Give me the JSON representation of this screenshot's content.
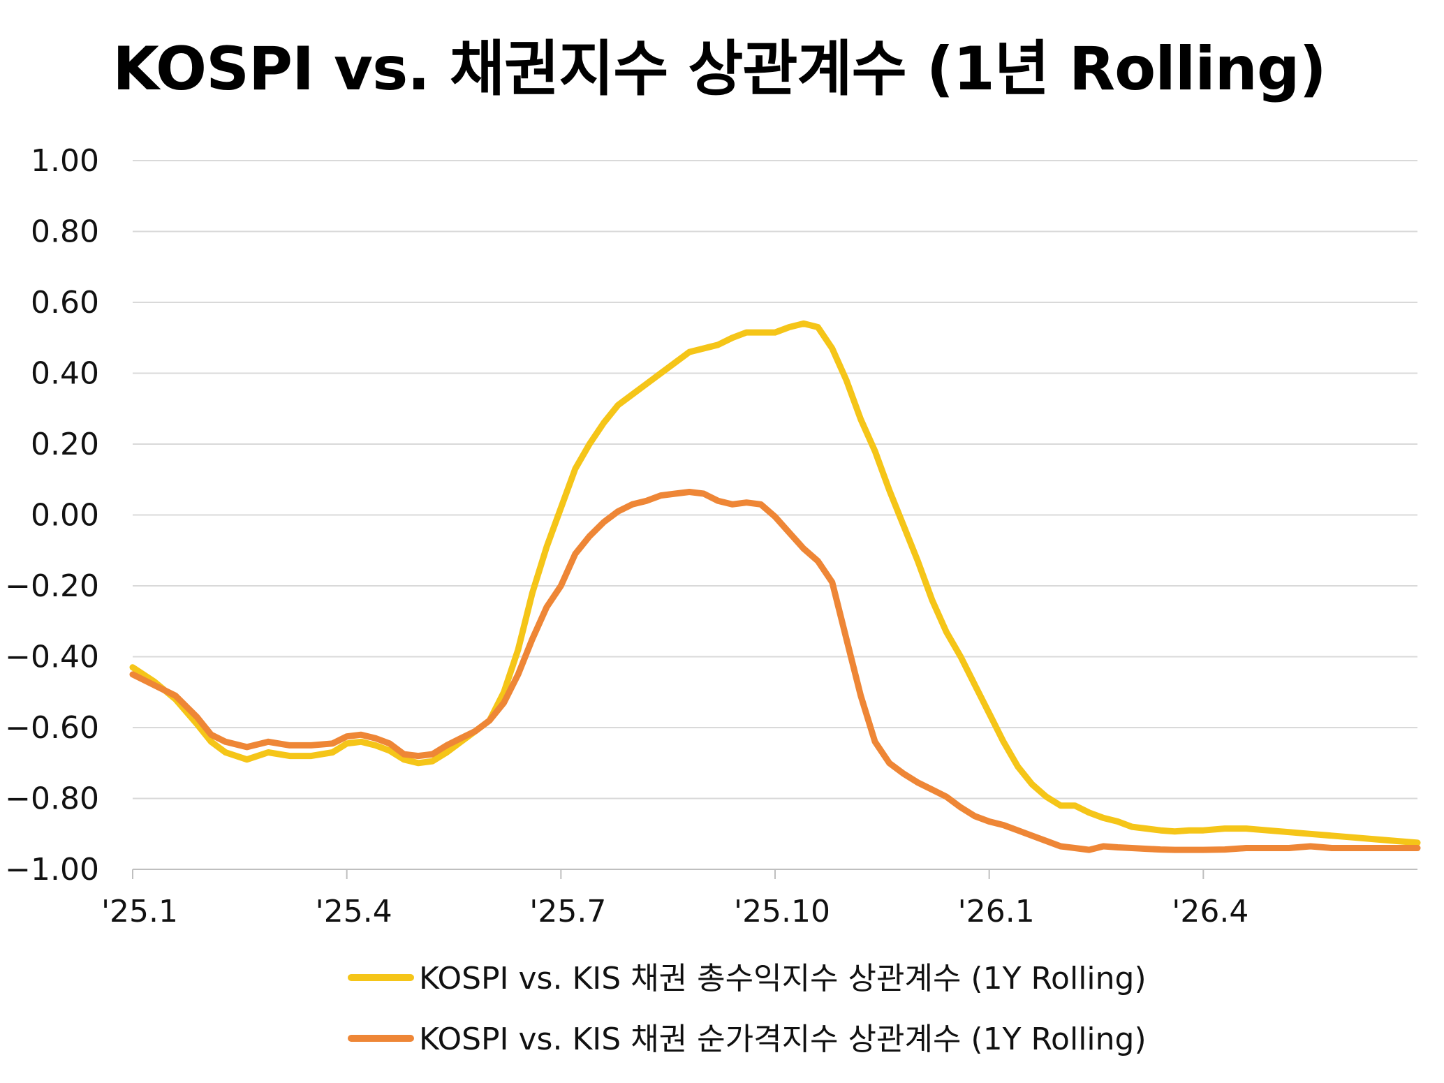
{
  "chart_data": {
    "type": "line",
    "title": "KOSPI vs. 채권지수 상관계수 (1년 Rolling)",
    "xlabel": "",
    "ylabel": "",
    "ylim": [
      -1.0,
      1.0
    ],
    "y_ticks": [
      "1.00",
      "0.80",
      "0.60",
      "0.40",
      "0.20",
      "0.00",
      "−0.20",
      "−0.40",
      "−0.60",
      "−0.80",
      "−1.00"
    ],
    "y_tick_values": [
      1.0,
      0.8,
      0.6,
      0.4,
      0.2,
      0.0,
      -0.2,
      -0.4,
      -0.6,
      -0.8,
      -1.0
    ],
    "x_ticks": [
      "'25.1",
      "'25.4",
      "'25.7",
      "'25.10",
      "'26.1",
      "'26.4"
    ],
    "x_tick_values": [
      0,
      3,
      6,
      9,
      12,
      15
    ],
    "xlim": [
      0,
      18
    ],
    "grid": true,
    "legend_position": "bottom",
    "series": [
      {
        "name": "KOSPI vs. KIS 채권 총수익지수 상관계수 (1Y Rolling)",
        "color": "#F5C518",
        "x": [
          0,
          0.3,
          0.6,
          0.9,
          1.1,
          1.3,
          1.6,
          1.9,
          2.2,
          2.5,
          2.8,
          3.0,
          3.2,
          3.4,
          3.6,
          3.8,
          4.0,
          4.2,
          4.4,
          4.6,
          4.8,
          5.0,
          5.2,
          5.4,
          5.6,
          5.8,
          6.0,
          6.2,
          6.4,
          6.6,
          6.8,
          7.0,
          7.2,
          7.4,
          7.6,
          7.8,
          8.0,
          8.2,
          8.4,
          8.6,
          8.8,
          9.0,
          9.2,
          9.4,
          9.6,
          9.8,
          10.0,
          10.2,
          10.4,
          10.6,
          10.8,
          11.0,
          11.2,
          11.4,
          11.6,
          11.8,
          12.0,
          12.2,
          12.4,
          12.6,
          12.8,
          13.0,
          13.2,
          13.4,
          13.6,
          13.8,
          14.0,
          14.2,
          14.4,
          14.6,
          14.8,
          15.0,
          15.3,
          15.6,
          15.9,
          16.2,
          16.5,
          16.8,
          17.1,
          17.4,
          17.7,
          18.0
        ],
        "y": [
          -0.43,
          -0.47,
          -0.52,
          -0.59,
          -0.64,
          -0.67,
          -0.69,
          -0.67,
          -0.68,
          -0.68,
          -0.67,
          -0.645,
          -0.64,
          -0.65,
          -0.665,
          -0.69,
          -0.7,
          -0.695,
          -0.67,
          -0.64,
          -0.61,
          -0.58,
          -0.5,
          -0.38,
          -0.22,
          -0.09,
          0.02,
          0.13,
          0.2,
          0.26,
          0.31,
          0.34,
          0.37,
          0.4,
          0.43,
          0.46,
          0.47,
          0.48,
          0.5,
          0.515,
          0.515,
          0.515,
          0.53,
          0.54,
          0.53,
          0.47,
          0.38,
          0.27,
          0.18,
          0.07,
          -0.03,
          -0.13,
          -0.24,
          -0.33,
          -0.4,
          -0.48,
          -0.56,
          -0.64,
          -0.71,
          -0.76,
          -0.795,
          -0.82,
          -0.82,
          -0.84,
          -0.855,
          -0.865,
          -0.88,
          -0.885,
          -0.89,
          -0.893,
          -0.89,
          -0.89,
          -0.885,
          -0.885,
          -0.89,
          -0.895,
          -0.9,
          -0.905,
          -0.91,
          -0.915,
          -0.92,
          -0.925
        ]
      },
      {
        "name": "KOSPI vs. KIS 채권 순가격지수 상관계수 (1Y Rolling)",
        "color": "#EE8636",
        "x": [
          0,
          0.3,
          0.6,
          0.9,
          1.1,
          1.3,
          1.6,
          1.9,
          2.2,
          2.5,
          2.8,
          3.0,
          3.2,
          3.4,
          3.6,
          3.8,
          4.0,
          4.2,
          4.4,
          4.6,
          4.8,
          5.0,
          5.2,
          5.4,
          5.6,
          5.8,
          6.0,
          6.2,
          6.4,
          6.6,
          6.8,
          7.0,
          7.2,
          7.4,
          7.6,
          7.8,
          8.0,
          8.2,
          8.4,
          8.6,
          8.8,
          9.0,
          9.2,
          9.4,
          9.6,
          9.8,
          10.0,
          10.2,
          10.4,
          10.6,
          10.8,
          11.0,
          11.2,
          11.4,
          11.6,
          11.8,
          12.0,
          12.2,
          12.4,
          12.6,
          12.8,
          13.0,
          13.2,
          13.4,
          13.6,
          13.8,
          14.0,
          14.2,
          14.4,
          14.6,
          14.8,
          15.0,
          15.3,
          15.6,
          15.9,
          16.2,
          16.5,
          16.8,
          17.1,
          17.4,
          17.7,
          18.0
        ],
        "y": [
          -0.45,
          -0.48,
          -0.51,
          -0.57,
          -0.62,
          -0.64,
          -0.655,
          -0.64,
          -0.65,
          -0.65,
          -0.645,
          -0.625,
          -0.62,
          -0.63,
          -0.645,
          -0.675,
          -0.68,
          -0.675,
          -0.65,
          -0.63,
          -0.61,
          -0.58,
          -0.53,
          -0.45,
          -0.35,
          -0.26,
          -0.2,
          -0.11,
          -0.06,
          -0.02,
          0.01,
          0.03,
          0.04,
          0.055,
          0.06,
          0.065,
          0.06,
          0.04,
          0.03,
          0.035,
          0.03,
          -0.005,
          -0.05,
          -0.095,
          -0.13,
          -0.19,
          -0.35,
          -0.51,
          -0.64,
          -0.7,
          -0.73,
          -0.755,
          -0.775,
          -0.795,
          -0.825,
          -0.85,
          -0.865,
          -0.875,
          -0.89,
          -0.905,
          -0.92,
          -0.935,
          -0.94,
          -0.945,
          -0.935,
          -0.938,
          -0.94,
          -0.942,
          -0.944,
          -0.945,
          -0.945,
          -0.945,
          -0.944,
          -0.94,
          -0.94,
          -0.94,
          -0.935,
          -0.94,
          -0.94,
          -0.94,
          -0.94,
          -0.94
        ]
      }
    ]
  }
}
